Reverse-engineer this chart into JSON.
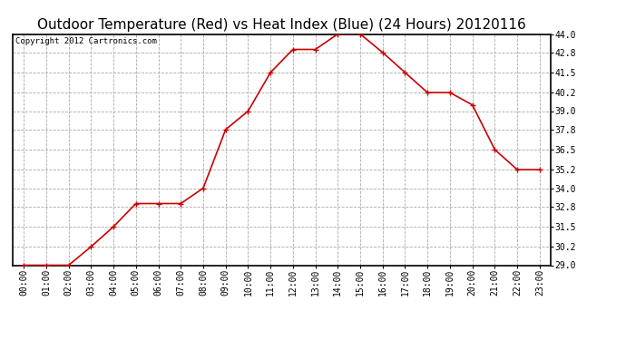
{
  "title": "Outdoor Temperature (Red) vs Heat Index (Blue) (24 Hours) 20120116",
  "copyright": "Copyright 2012 Cartronics.com",
  "x_labels": [
    "00:00",
    "01:00",
    "02:00",
    "03:00",
    "04:00",
    "05:00",
    "06:00",
    "07:00",
    "08:00",
    "09:00",
    "10:00",
    "11:00",
    "12:00",
    "13:00",
    "14:00",
    "15:00",
    "16:00",
    "17:00",
    "18:00",
    "19:00",
    "20:00",
    "21:00",
    "22:00",
    "23:00"
  ],
  "temp_values": [
    29.0,
    29.0,
    29.0,
    30.2,
    31.5,
    33.0,
    33.0,
    33.0,
    34.0,
    37.8,
    39.0,
    41.5,
    43.0,
    43.0,
    44.0,
    44.0,
    42.8,
    41.5,
    40.2,
    40.2,
    39.4,
    36.5,
    35.2,
    35.2
  ],
  "line_color_temp": "#cc0000",
  "marker": "+",
  "markersize": 4,
  "markeredgewidth": 1.0,
  "linewidth": 1.2,
  "ylim_min": 29.0,
  "ylim_max": 44.0,
  "yticks": [
    29.0,
    30.2,
    31.5,
    32.8,
    34.0,
    35.2,
    36.5,
    37.8,
    39.0,
    40.2,
    41.5,
    42.8,
    44.0
  ],
  "grid_color": "#aaaaaa",
  "grid_linestyle": "--",
  "background_color": "#ffffff",
  "title_fontsize": 11,
  "tick_fontsize": 7,
  "copyright_fontsize": 6.5,
  "plot_bg": "#ffffff"
}
